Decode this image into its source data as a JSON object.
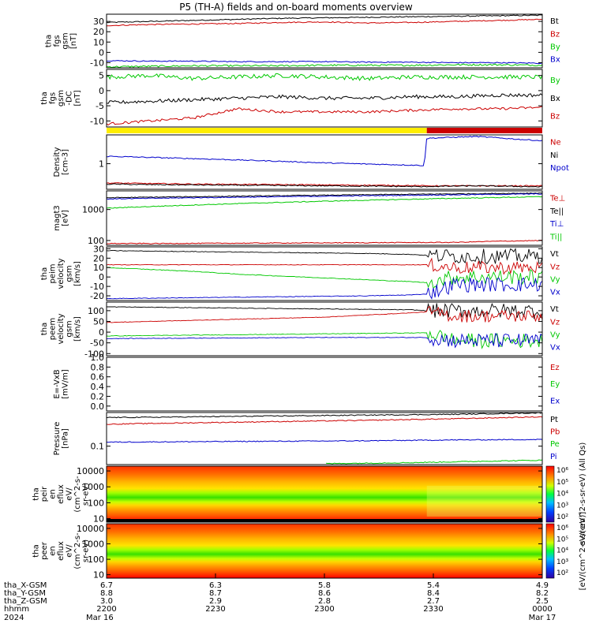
{
  "title": "P5 (TH-A) fields and on-board moments overview",
  "colors": {
    "black": "#000000",
    "red": "#cc0000",
    "green": "#00c800",
    "blue": "#0000cc",
    "yellow": "#ffee00"
  },
  "chart_data": [
    {
      "type": "line",
      "ylabel": [
        "tha",
        "fgs",
        "gsm",
        "[nT]"
      ],
      "ylim": [
        -15,
        37
      ],
      "y_ticks": [
        -10,
        0,
        10,
        20,
        30
      ],
      "tick_labels": [
        "-10",
        "0",
        "10",
        "20",
        "30"
      ],
      "x": [
        0,
        0.1,
        0.2,
        0.3,
        0.4,
        0.5,
        0.6,
        0.7,
        0.8,
        0.9,
        1.0
      ],
      "legend": [
        {
          "name": "Bt",
          "color": "black"
        },
        {
          "name": "Bz",
          "color": "red"
        },
        {
          "name": "By",
          "color": "green"
        },
        {
          "name": "Bx",
          "color": "blue"
        }
      ],
      "series": [
        {
          "name": "Bt",
          "color": "black",
          "noise": 0.5,
          "values": [
            29,
            30,
            31,
            32,
            33,
            33.5,
            34,
            34.5,
            35,
            35.5,
            36
          ]
        },
        {
          "name": "Bz",
          "color": "red",
          "noise": 0.5,
          "values": [
            26,
            27,
            27.5,
            28,
            29,
            29.5,
            28.5,
            29,
            30,
            31,
            32
          ]
        },
        {
          "name": "By",
          "color": "green",
          "noise": 0.8,
          "values": [
            -14,
            -13.5,
            -13,
            -13,
            -13,
            -12.5,
            -12.5,
            -12.5,
            -12,
            -12,
            -12.5
          ]
        },
        {
          "name": "Bx",
          "color": "blue",
          "noise": 0.5,
          "values": [
            -8,
            -8.5,
            -8.5,
            -9,
            -9,
            -9,
            -9.5,
            -9.5,
            -10,
            -10,
            -10.5
          ]
        }
      ]
    },
    {
      "type": "line",
      "ylabel": [
        "tha",
        "fgs",
        "gsm",
        "-DC",
        "[nT]"
      ],
      "ylim": [
        -12,
        7
      ],
      "y_ticks": [
        -10,
        -5,
        0,
        5
      ],
      "tick_labels": [
        "-10",
        "-5",
        "0",
        "5"
      ],
      "x": [
        0,
        0.1,
        0.2,
        0.3,
        0.4,
        0.5,
        0.6,
        0.7,
        0.8,
        0.9,
        1.0
      ],
      "legend": [
        {
          "name": "By",
          "color": "green"
        },
        {
          "name": "Bx",
          "color": "black"
        },
        {
          "name": "Bz",
          "color": "red"
        }
      ],
      "series": [
        {
          "name": "By",
          "color": "green",
          "noise": 0.7,
          "values": [
            4.5,
            5,
            4,
            4.5,
            5,
            4.5,
            4,
            4.5,
            4.5,
            4.5,
            4.5
          ]
        },
        {
          "name": "Bx",
          "color": "black",
          "noise": 0.6,
          "values": [
            -4,
            -3.5,
            -3,
            -2.5,
            -2,
            -2.5,
            -2.5,
            -2,
            -2,
            -1.5,
            -1.5
          ]
        },
        {
          "name": "Bz",
          "color": "red",
          "noise": 0.4,
          "values": [
            -11,
            -10,
            -9,
            -6,
            -7,
            -7,
            -7,
            -6.5,
            -6,
            -6,
            -5.5
          ]
        }
      ]
    },
    {
      "type": "status_bar",
      "segments": [
        {
          "from": 0,
          "to": 0.735,
          "color": "yellow"
        },
        {
          "from": 0.735,
          "to": 1,
          "color": "red"
        }
      ]
    },
    {
      "type": "line",
      "ylabel": [
        "Density",
        "[cm-3]"
      ],
      "ylim": [
        0.22,
        5.5
      ],
      "log": true,
      "y_ticks": [
        1
      ],
      "tick_labels": [
        "1"
      ],
      "x": [
        0,
        0.1,
        0.2,
        0.3,
        0.4,
        0.5,
        0.6,
        0.7,
        0.73,
        0.735,
        0.8,
        0.85,
        0.9,
        0.95,
        1.0
      ],
      "legend": [
        {
          "name": "Ne",
          "color": "red"
        },
        {
          "name": "Ni",
          "color": "black"
        },
        {
          "name": "Npot",
          "color": "blue"
        },
        {
          "name": "",
          "color": "black"
        }
      ],
      "series": [
        {
          "name": "Npot",
          "color": "blue",
          "noise": 0.01,
          "values": [
            1.55,
            1.45,
            1.35,
            1.25,
            1.15,
            1.05,
            0.98,
            0.92,
            0.9,
            4.5,
            4.8,
            5,
            4.6,
            4.2,
            3.9
          ]
        },
        {
          "name": "Ne",
          "color": "red",
          "noise": 0.01,
          "values": [
            0.32,
            0.31,
            0.3,
            0.295,
            0.29,
            0.285,
            0.28,
            0.275,
            0.27,
            0.27,
            0.27,
            0.27,
            0.27,
            0.27,
            0.27
          ]
        },
        {
          "name": "Ni",
          "color": "black",
          "noise": 0.01,
          "values": [
            0.3,
            0.29,
            0.285,
            0.28,
            0.275,
            0.27,
            0.265,
            0.26,
            0.255,
            0.26,
            0.265,
            0.27,
            0.265,
            0.26,
            0.255
          ]
        }
      ]
    },
    {
      "type": "line",
      "ylabel": [
        "magt3",
        "[eV]"
      ],
      "ylim": [
        70,
        4000
      ],
      "log": true,
      "y_ticks": [
        100,
        1000
      ],
      "tick_labels": [
        "100",
        "1000"
      ],
      "x": [
        0,
        0.1,
        0.2,
        0.3,
        0.4,
        0.5,
        0.6,
        0.7,
        0.8,
        0.9,
        1.0
      ],
      "legend": [
        {
          "name": "Te⊥",
          "color": "red"
        },
        {
          "name": "Te||",
          "color": "black"
        },
        {
          "name": "Ti⊥",
          "color": "blue"
        },
        {
          "name": "Ti||",
          "color": "green"
        }
      ],
      "series": [
        {
          "name": "Te||",
          "color": "black",
          "noise": 0.01,
          "values": [
            2400,
            2500,
            2600,
            2700,
            2800,
            2900,
            3000,
            3100,
            3200,
            3300,
            3400
          ]
        },
        {
          "name": "Ti⊥",
          "color": "blue",
          "noise": 0.01,
          "values": [
            2200,
            2300,
            2400,
            2500,
            2600,
            2700,
            2800,
            2900,
            3000,
            3100,
            3200
          ]
        },
        {
          "name": "Ti||",
          "color": "green",
          "noise": 0.01,
          "values": [
            1100,
            1250,
            1400,
            1550,
            1700,
            1850,
            2000,
            2150,
            2300,
            2450,
            2600
          ]
        },
        {
          "name": "Te⊥",
          "color": "red",
          "noise": 0.01,
          "values": [
            80,
            80,
            81,
            82,
            83,
            84,
            85,
            86,
            87,
            95,
            100
          ]
        }
      ]
    },
    {
      "type": "line",
      "ylabel": [
        "tha",
        "peim",
        "velocity",
        "gsm",
        "[km/s]"
      ],
      "ylim": [
        -25,
        32
      ],
      "y_ticks": [
        -20,
        -10,
        0,
        10,
        20,
        30
      ],
      "tick_labels": [
        "-20",
        "-10",
        "0",
        "10",
        "20",
        "30"
      ],
      "noisy_from": 0.735,
      "x": [
        0,
        0.1,
        0.2,
        0.3,
        0.4,
        0.5,
        0.6,
        0.7,
        0.735,
        0.8,
        0.9,
        1.0
      ],
      "legend": [
        {
          "name": "Vt",
          "color": "black"
        },
        {
          "name": "Vz",
          "color": "red"
        },
        {
          "name": "Vy",
          "color": "green"
        },
        {
          "name": "Vx",
          "color": "blue"
        }
      ],
      "series": [
        {
          "name": "Vt",
          "color": "black",
          "noise": 8,
          "values": [
            28,
            27.5,
            27,
            26.5,
            26,
            25.5,
            25,
            24,
            23,
            22,
            22,
            22
          ]
        },
        {
          "name": "Vz",
          "color": "red",
          "noise": 7,
          "values": [
            13,
            13,
            13,
            13,
            13,
            13,
            13,
            13,
            13,
            10,
            10,
            10
          ]
        },
        {
          "name": "Vy",
          "color": "green",
          "noise": 8,
          "values": [
            10,
            8,
            6,
            3,
            1,
            -1,
            -3,
            -5,
            -6,
            0,
            0,
            0
          ]
        },
        {
          "name": "Vx",
          "color": "blue",
          "noise": 8,
          "values": [
            -23,
            -22.5,
            -22,
            -21.5,
            -21,
            -20.5,
            -20,
            -19,
            -18,
            -8,
            -8,
            -8
          ]
        }
      ]
    },
    {
      "type": "line",
      "ylabel": [
        "tha",
        "peem",
        "velocity",
        "gsm",
        "[km/s]"
      ],
      "ylim": [
        -110,
        140
      ],
      "y_ticks": [
        -100,
        -50,
        0,
        50,
        100
      ],
      "tick_labels": [
        "-100",
        "-50",
        "0",
        "50",
        "100"
      ],
      "noisy_from": 0.735,
      "x": [
        0,
        0.1,
        0.2,
        0.3,
        0.4,
        0.5,
        0.6,
        0.7,
        0.735,
        0.8,
        0.9,
        1.0
      ],
      "legend": [
        {
          "name": "Vt",
          "color": "black"
        },
        {
          "name": "Vz",
          "color": "red"
        },
        {
          "name": "Vy",
          "color": "green"
        },
        {
          "name": "Vx",
          "color": "blue"
        }
      ],
      "series": [
        {
          "name": "Vt",
          "color": "black",
          "noise": 35,
          "values": [
            118,
            116,
            114,
            112,
            110,
            108,
            106,
            104,
            100,
            100,
            100,
            100
          ]
        },
        {
          "name": "Vz",
          "color": "red",
          "noise": 30,
          "values": [
            45,
            50,
            55,
            60,
            65,
            70,
            80,
            90,
            95,
            75,
            75,
            75
          ]
        },
        {
          "name": "Vy",
          "color": "green",
          "noise": 35,
          "values": [
            -18,
            -16,
            -14,
            -12,
            -10,
            -8,
            -6,
            -4,
            -3,
            -40,
            -40,
            -40
          ]
        },
        {
          "name": "Vx",
          "color": "blue",
          "noise": 35,
          "values": [
            -30,
            -29,
            -28,
            -27,
            -26,
            -25,
            -25,
            -25,
            -25,
            -40,
            -40,
            -40
          ]
        }
      ]
    },
    {
      "type": "line",
      "ylabel": [
        "E=-VxB",
        "[mV/m]"
      ],
      "ylim": [
        -0.1,
        1.0
      ],
      "y_ticks": [
        0,
        0.2,
        0.4,
        0.6,
        0.8,
        1.0
      ],
      "tick_labels": [
        "0.0",
        "0.2",
        "0.4",
        "0.6",
        "0.8",
        "1.0"
      ],
      "legend": [
        {
          "name": "Ez",
          "color": "red"
        },
        {
          "name": "Ey",
          "color": "green"
        },
        {
          "name": "Ex",
          "color": "blue"
        }
      ],
      "series": []
    },
    {
      "type": "line",
      "ylabel": [
        "Pressure",
        "[nPa]"
      ],
      "ylim": [
        0.03,
        0.9
      ],
      "log": true,
      "y_ticks": [
        0.1
      ],
      "tick_labels": [
        "0.1"
      ],
      "x": [
        0,
        0.1,
        0.2,
        0.3,
        0.4,
        0.5,
        0.6,
        0.7,
        0.8,
        0.9,
        1.0
      ],
      "legend": [
        {
          "name": "Pt",
          "color": "black"
        },
        {
          "name": "Pb",
          "color": "red"
        },
        {
          "name": "Pe",
          "color": "green"
        },
        {
          "name": "Pi",
          "color": "blue"
        }
      ],
      "series": [
        {
          "name": "Pt",
          "color": "black",
          "noise": 0.005,
          "values": [
            0.65,
            0.66,
            0.68,
            0.7,
            0.72,
            0.74,
            0.76,
            0.78,
            0.8,
            0.84,
            0.88
          ]
        },
        {
          "name": "Pb",
          "color": "red",
          "noise": 0.005,
          "values": [
            0.42,
            0.44,
            0.46,
            0.48,
            0.5,
            0.52,
            0.54,
            0.57,
            0.6,
            0.64,
            0.68
          ]
        },
        {
          "name": "Pi",
          "color": "blue",
          "noise": 0.002,
          "values": [
            0.13,
            0.132,
            0.134,
            0.136,
            0.138,
            0.14,
            0.142,
            0.146,
            0.15,
            0.152,
            0.155
          ]
        },
        {
          "name": "Pe",
          "color": "green",
          "noise": 0.001,
          "values": [
            null,
            null,
            null,
            null,
            null,
            0.032,
            0.033,
            0.034,
            0.036,
            0.038,
            0.04
          ]
        }
      ]
    },
    {
      "type": "heatmap",
      "ylabel": [
        "tha",
        "peir",
        "en",
        "eflux",
        "eV/",
        "(cm^2-s-",
        "sr-eV)"
      ],
      "ylim": [
        6,
        20000
      ],
      "log": true,
      "y_ticks": [
        10,
        100,
        1000,
        10000
      ],
      "tick_labels": [
        "10",
        "100",
        "1000",
        "10000"
      ],
      "colorbar_labels": [
        "10²",
        "10³",
        "10⁴",
        "10⁵",
        "10⁶"
      ],
      "colorbar_title": "eV/(cm^2-s-sr-eV) (All Qs)"
    },
    {
      "type": "heatmap",
      "ylabel": [
        "tha",
        "peer",
        "en",
        "eflux",
        "eV/",
        "(cm^2-s-",
        "sr-eV)"
      ],
      "ylim": [
        6,
        20000
      ],
      "log": true,
      "y_ticks": [
        10,
        100,
        1000,
        10000
      ],
      "tick_labels": [
        "10",
        "100",
        "1000",
        "10000"
      ],
      "colorbar_labels": [
        "10²",
        "10³",
        "10⁴",
        "10⁵",
        "10⁶"
      ],
      "colorbar_title": "[eV/(cm^2-s-sr-eV)]"
    }
  ],
  "axis": {
    "row_labels": [
      "tha_X-GSM",
      "tha_Y-GSM",
      "tha_Z-GSM",
      "hhmm",
      "2024"
    ],
    "columns": [
      {
        "pos": 0,
        "vals": [
          "6.7",
          "8.8",
          "3.0",
          "2200",
          "Mar 16"
        ]
      },
      {
        "pos": 0.25,
        "vals": [
          "6.3",
          "8.7",
          "2.9",
          "2230",
          ""
        ]
      },
      {
        "pos": 0.5,
        "vals": [
          "5.8",
          "8.6",
          "2.8",
          "2300",
          ""
        ]
      },
      {
        "pos": 0.75,
        "vals": [
          "5.4",
          "8.4",
          "2.7",
          "2330",
          ""
        ]
      },
      {
        "pos": 1,
        "vals": [
          "4.9",
          "8.2",
          "2.5",
          "0000",
          "Mar 17"
        ]
      }
    ]
  }
}
